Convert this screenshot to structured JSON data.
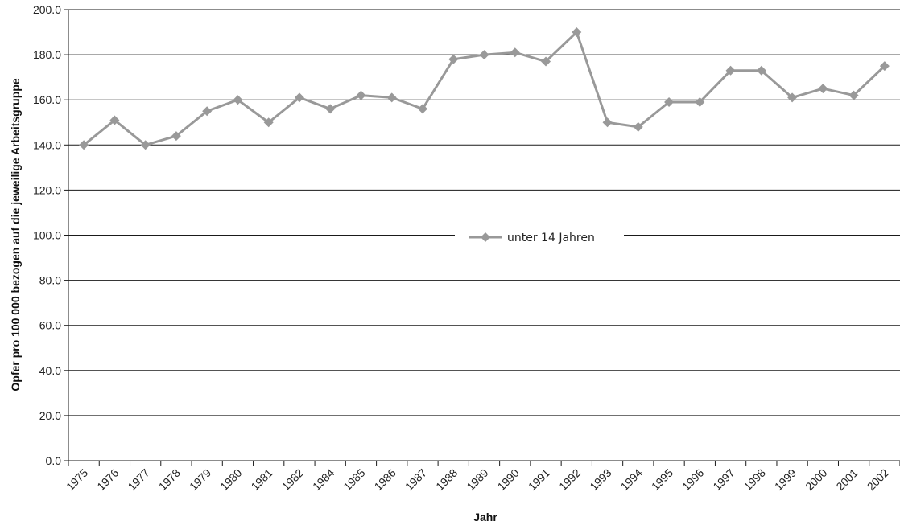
{
  "chart_data": {
    "type": "line",
    "title": "",
    "xlabel": "Jahr",
    "ylabel": "Opfer pro 100 000 bezogen auf die jeweilige Arbeitsgruppe",
    "ylim": [
      0,
      200
    ],
    "y_ticks": [
      "0.0",
      "20.0",
      "40.0",
      "60.0",
      "80.0",
      "100.0",
      "120.0",
      "140.0",
      "160.0",
      "180.0",
      "200.0"
    ],
    "grid": "horizontal",
    "legend": "center",
    "categories": [
      "1975",
      "1976",
      "1977",
      "1978",
      "1979",
      "1980",
      "1981",
      "1982",
      "1984",
      "1985",
      "1986",
      "1987",
      "1988",
      "1989",
      "1990",
      "1991",
      "1992",
      "1993",
      "1994",
      "1995",
      "1996",
      "1997",
      "1998",
      "1999",
      "2000",
      "2001",
      "2002"
    ],
    "series": [
      {
        "name": "unter 14 Jahren",
        "color": "#999999",
        "marker": "diamond",
        "values": [
          140,
          151,
          140,
          144,
          155,
          160,
          150,
          161,
          156,
          162,
          161,
          156,
          178,
          180,
          181,
          177,
          190,
          150,
          148,
          159,
          159,
          173,
          173,
          161,
          165,
          162,
          175
        ]
      }
    ]
  }
}
